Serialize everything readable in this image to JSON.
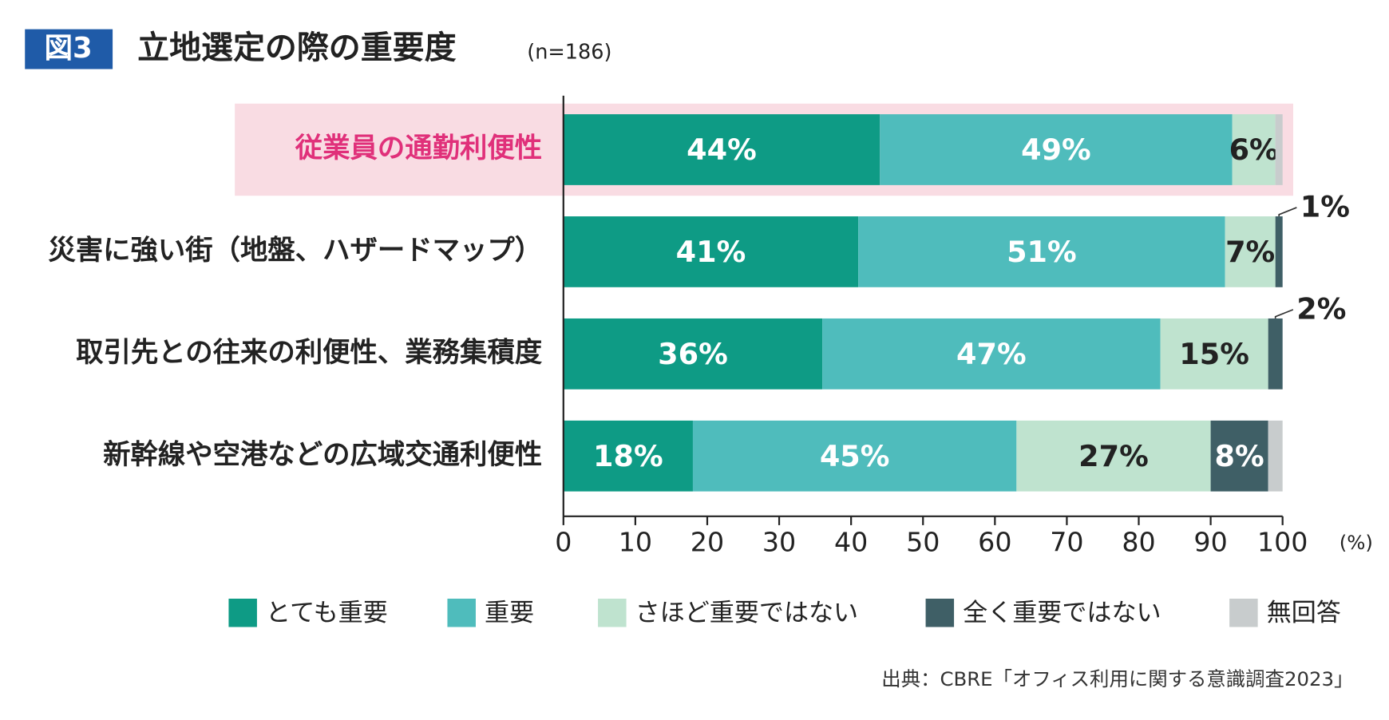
{
  "chart_data": {
    "type": "stacked_barh",
    "badge": "図3",
    "title": "立地選定の際の重要度",
    "subtitle": "(n=186)",
    "x_unit": "(%)",
    "source": "出典：CBRE「オフィス利用に関する意識調査2023」",
    "categories": [
      "従業員の通勤利便性",
      "災害に強い街（地盤、ハザードマップ）",
      "取引先との往来の利便性、業務集積度",
      "新幹線や空港などの広域交通利便性"
    ],
    "highlight": {
      "category": 0,
      "color": "#f9dce3",
      "text_color": "#e0307a"
    },
    "series": [
      {
        "name": "とても重要",
        "color": "#0e9b85",
        "values": [
          44,
          41,
          36,
          18
        ],
        "value_labels": [
          "44%",
          "41%",
          "36%",
          "18%"
        ]
      },
      {
        "name": "重要",
        "color": "#4fbcbc",
        "values": [
          49,
          51,
          47,
          45
        ],
        "value_labels": [
          "49%",
          "51%",
          "47%",
          "45%"
        ]
      },
      {
        "name": "さほど重要ではない",
        "color": "#bfe3cf",
        "values": [
          6,
          7,
          15,
          27
        ],
        "value_labels": [
          "6%",
          "7%",
          "15%",
          "27%"
        ]
      },
      {
        "name": "全く重要ではない",
        "color": "#3f5f66",
        "values": [
          0,
          1,
          2,
          8
        ],
        "value_labels": [
          null,
          "1%",
          "2%",
          "8%"
        ]
      },
      {
        "name": "無回答",
        "color": "#c8cccd",
        "values": [
          1,
          0,
          0,
          2
        ],
        "value_labels": [
          null,
          null,
          null,
          null
        ]
      }
    ],
    "xlim": [
      0,
      100
    ],
    "xticks": [
      0,
      10,
      20,
      30,
      40,
      50,
      60,
      70,
      80,
      90,
      100
    ]
  }
}
